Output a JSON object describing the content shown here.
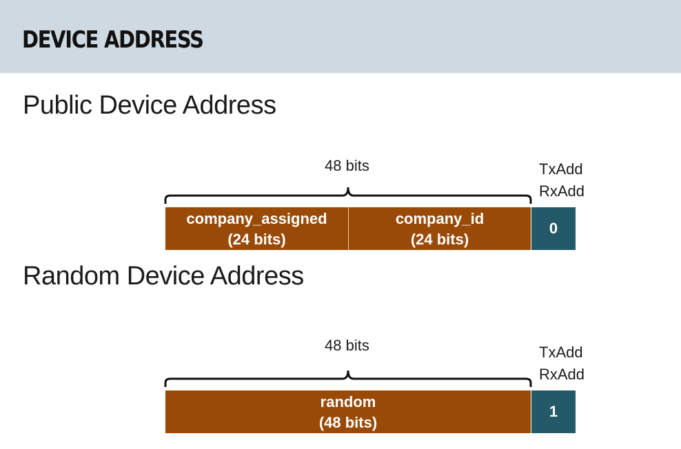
{
  "header": {
    "title": "DEVICE ADDRESS"
  },
  "public": {
    "title": "Public Device Address",
    "bits_label": "48 bits",
    "flag_label_1": "TxAdd",
    "flag_label_2": "RxAdd",
    "fields": [
      {
        "name": "company_assigned",
        "size": "(24 bits)"
      },
      {
        "name": "company_id",
        "size": "(24 bits)"
      }
    ],
    "flag_value": "0"
  },
  "random": {
    "title": "Random Device Address",
    "bits_label": "48 bits",
    "flag_label_1": "TxAdd",
    "flag_label_2": "RxAdd",
    "fields": [
      {
        "name": "random",
        "size": "(48 bits)"
      }
    ],
    "flag_value": "1"
  },
  "colors": {
    "header_bg": "#cfd9e1",
    "field_bg": "#9a4a07",
    "flag_bg": "#245a68"
  }
}
